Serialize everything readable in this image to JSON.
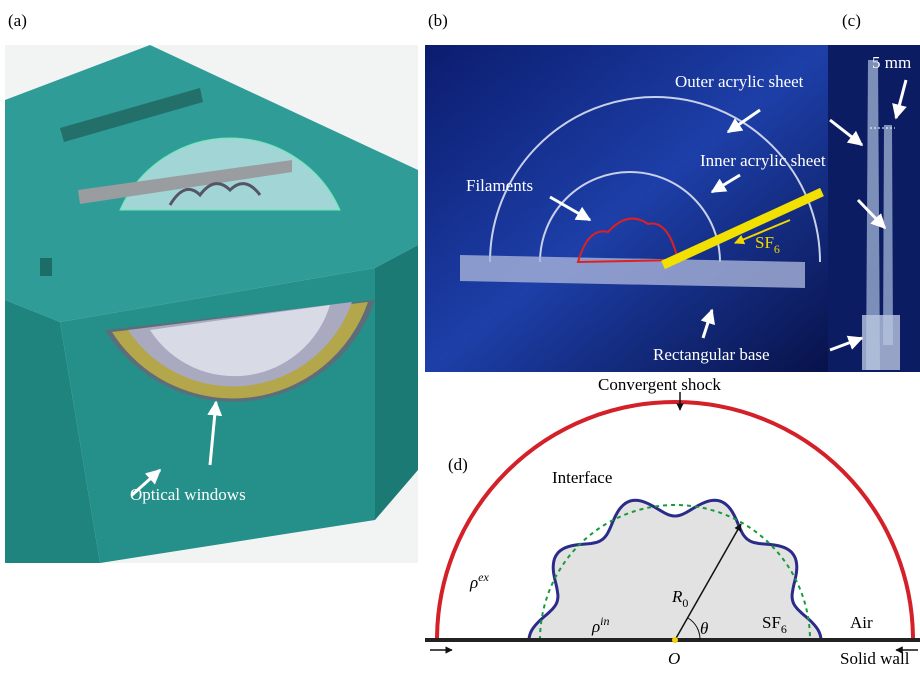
{
  "panels": {
    "a": {
      "label": "(a)",
      "annotation": "Optical windows"
    },
    "b": {
      "label": "(b)",
      "outer_sheet": "Outer acrylic sheet",
      "inner_sheet": "Inner acrylic sheet",
      "filaments": "Filaments",
      "gas": {
        "text": "SF",
        "sub": "6"
      },
      "base": "Rectangular base"
    },
    "c": {
      "label": "(c)",
      "scale": "5 mm"
    },
    "d": {
      "label": "(d)",
      "shock": "Convergent shock",
      "interface": "Interface",
      "rho_ex": {
        "symbol": "ρ",
        "sup": "ex"
      },
      "rho_in": {
        "symbol": "ρ",
        "sup": "in"
      },
      "radius": {
        "symbol": "R",
        "sub": "0"
      },
      "angle": "θ",
      "gas": {
        "text": "SF",
        "sub": "6"
      },
      "outside": "Air",
      "origin": "O",
      "wall": "Solid wall"
    }
  }
}
